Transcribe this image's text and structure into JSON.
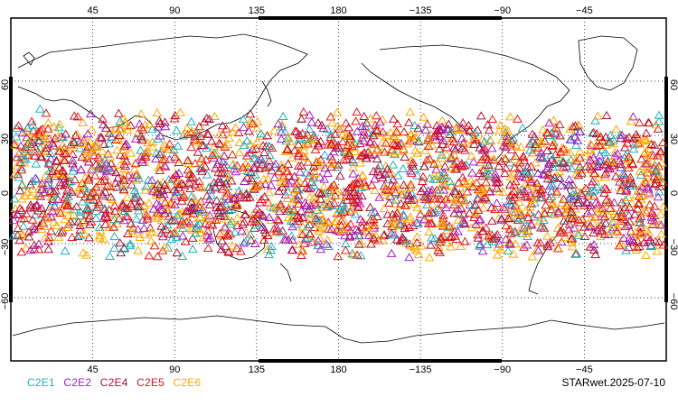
{
  "top_lon_labels": [
    "45",
    "90",
    "135",
    "180",
    "−135",
    "−90",
    "−45"
  ],
  "bottom_lon_labels": [
    "45",
    "90",
    "135",
    "180",
    "−135",
    "−90",
    "−45"
  ],
  "left_lat_labels": [
    "60",
    "30",
    "0",
    "−30",
    "−60"
  ],
  "right_lat_labels": [
    "60",
    "30",
    "0",
    "−30",
    "−60"
  ],
  "lon_values": [
    45,
    90,
    135,
    180,
    -135,
    -90,
    -45
  ],
  "lat_values": [
    60,
    30,
    0,
    -30,
    -60
  ],
  "legend": [
    {
      "label": "C2E1",
      "color": "#20b0c0"
    },
    {
      "label": "C2E2",
      "color": "#a020c0"
    },
    {
      "label": "C2E4",
      "color": "#b01030"
    },
    {
      "label": "C2E5",
      "color": "#e01818"
    },
    {
      "label": "C2E6",
      "color": "#ffa800"
    }
  ],
  "stamp": "STARwet.2025-07-10",
  "marker": "triangle",
  "observation_band": {
    "lat_min": -40,
    "lat_max": 45
  },
  "colors": {
    "coast": "#000000",
    "grid": "#000000"
  }
}
